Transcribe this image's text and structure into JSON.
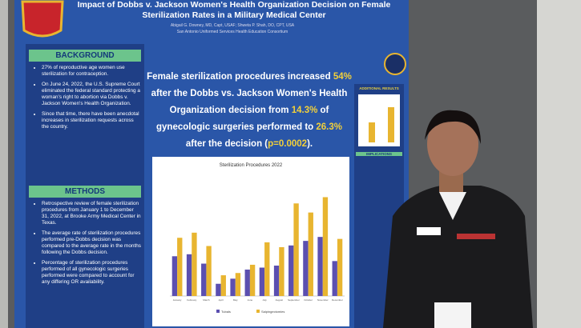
{
  "poster": {
    "title": "Impact of Dobbs v. Jackson Women's Health Organization Decision on Female Sterilization Rates in a Military Medical Center",
    "authors": "Abigail G. Downey, MD, Capt, USAF; Shweta P. Shah, DO, CPT, USA",
    "affiliation": "San Antonio Uniformed Services Health Education Consortium",
    "background": {
      "heading": "BACKGROUND",
      "bullets": [
        "27% of reproductive age women use sterilization for contraception.",
        "On June 24, 2022, the U.S. Supreme Court eliminated the federal standard protecting a woman's right to abortion via Dobbs v. Jackson Women's Health Organization.",
        "Since that time, there have been anecdotal increases in sterilization requests across the country."
      ]
    },
    "methods": {
      "heading": "METHODS",
      "bullets": [
        "Retrospective review of female sterilization procedures from January 1 to December 31, 2022, at Brooke Army Medical Center in Texas.",
        "The average rate of sterilization procedures performed pre-Dobbs decision was compared to the average rate in the months following the Dobbs decision.",
        "Percentage of sterilization procedures performed of all gynecologic surgeries performed were compared to account for any differing OR availability."
      ]
    },
    "finding": [
      {
        "text": "Female sterilization procedures increased ",
        "highlight": false
      },
      {
        "text": "54%",
        "highlight": true
      },
      {
        "text": " after the Dobbs vs. Jackson Women's Health Organization decision from ",
        "highlight": false
      },
      {
        "text": "14.3%",
        "highlight": true
      },
      {
        "text": " of gynecologic surgeries performed to ",
        "highlight": false
      },
      {
        "text": "26.3%",
        "highlight": true
      },
      {
        "text": " after the decision (",
        "highlight": false
      },
      {
        "text": "p=0.0002",
        "highlight": true
      },
      {
        "text": ").",
        "highlight": false
      }
    ],
    "right_headings": [
      "ADDITIONAL RESULTS",
      "IMPLICATIONS"
    ]
  },
  "chart_data": {
    "type": "bar",
    "title": "Sterilization Procedures 2022",
    "categories": [
      "January",
      "February",
      "March",
      "April",
      "May",
      "June",
      "July",
      "August",
      "September",
      "October",
      "November",
      "December"
    ],
    "series": [
      {
        "name": "Tubals",
        "color": "#5b4fb0",
        "values": [
          14.0,
          14.7,
          11.4,
          4.3,
          6.1,
          9.3,
          10.0,
          10.7,
          17.8,
          19.4,
          20.8,
          12.3
        ]
      },
      {
        "name": "Salpingectomies",
        "color": "#e8b530",
        "values": [
          20.5,
          22.3,
          17.6,
          7.3,
          8.1,
          11.0,
          18.9,
          17.2,
          32.6,
          29.4,
          34.8,
          20.1
        ]
      }
    ],
    "ylim": [
      0,
      40
    ]
  }
}
